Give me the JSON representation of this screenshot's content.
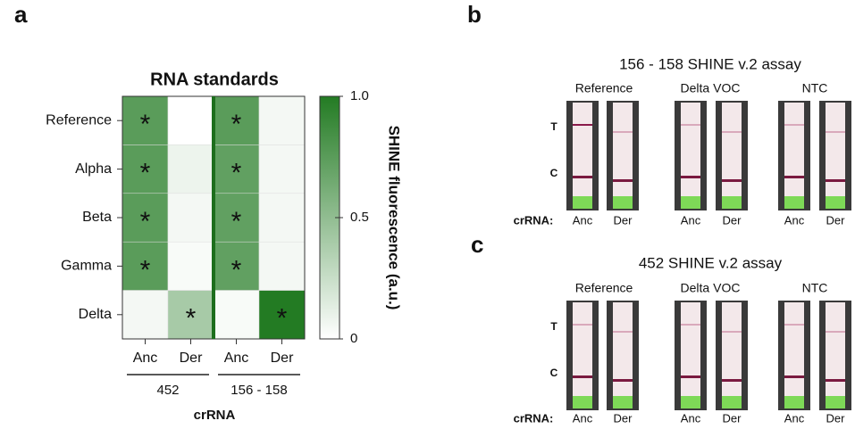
{
  "chart_data": {
    "type": "heatmap",
    "title": "RNA standards",
    "rows": [
      "Reference",
      "Alpha",
      "Beta",
      "Gamma",
      "Delta"
    ],
    "categories": [
      "Anc",
      "Der",
      "Anc",
      "Der"
    ],
    "groups": [
      "452",
      "156 - 158"
    ],
    "xlabel": "crRNA",
    "z": [
      [
        0.75,
        0.0,
        0.75,
        0.05
      ],
      [
        0.75,
        0.08,
        0.72,
        0.05
      ],
      [
        0.75,
        0.05,
        0.72,
        0.05
      ],
      [
        0.75,
        0.03,
        0.72,
        0.05
      ],
      [
        0.05,
        0.4,
        0.03,
        1.0
      ]
    ],
    "stars": [
      [
        "*",
        null,
        "*",
        null
      ],
      [
        "*",
        null,
        "*",
        null
      ],
      [
        "*",
        null,
        "*",
        null
      ],
      [
        "*",
        null,
        "*",
        null
      ],
      [
        null,
        "*",
        null,
        "*"
      ]
    ],
    "colormap": [
      "#ffffff",
      "#237b23"
    ],
    "clim": [
      0,
      1
    ],
    "cticks": [
      0,
      0.5,
      {
        "value": 1,
        "label": "1.0"
      }
    ],
    "colorbar_label": "SHINE fluorescence (a.u.)"
  },
  "letters": [
    "a",
    "b",
    "c"
  ],
  "panels": [
    {
      "title": "156 - 158 SHINE v.2 assay",
      "headers": [
        "Reference",
        "Delta VOC",
        "NTC"
      ],
      "line_labels": [
        "T",
        "C"
      ],
      "row_label": "crRNA:",
      "lanes": [
        "Anc",
        "Der",
        "Anc",
        "Der",
        "Anc",
        "Der"
      ]
    },
    {
      "title": "452 SHINE v.2 assay",
      "headers": [
        "Reference",
        "Delta VOC",
        "NTC"
      ],
      "line_labels": [
        "T",
        "C"
      ],
      "row_label": "crRNA:",
      "lanes": [
        "Anc",
        "Der",
        "Anc",
        "Der",
        "Anc",
        "Der"
      ]
    }
  ]
}
